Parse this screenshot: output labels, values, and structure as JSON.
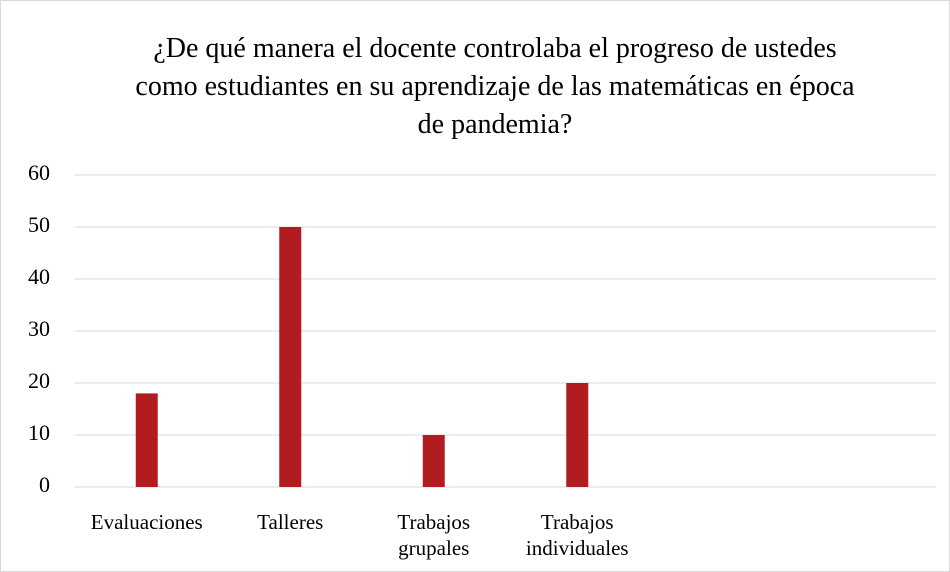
{
  "chart_data": {
    "type": "bar",
    "title": "¿De qué manera el docente controlaba el progreso de ustedes como estudiantes en su aprendizaje de las matemáticas en época de pandemia?",
    "categories": [
      "Evaluaciones",
      "Talleres",
      "Trabajos grupales",
      "Trabajos individuales",
      null,
      null
    ],
    "values": [
      18,
      50,
      10,
      20,
      null,
      null
    ],
    "color": "#b01c1f",
    "ylim": [
      0,
      60
    ],
    "yticks": [
      0,
      10,
      20,
      30,
      40,
      50,
      60
    ],
    "grid": true
  }
}
